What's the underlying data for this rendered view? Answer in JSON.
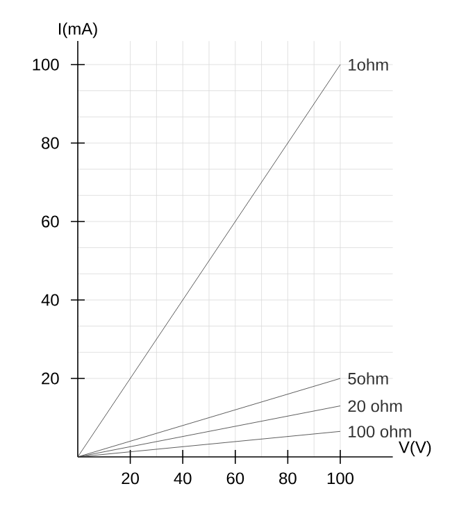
{
  "chart_data": {
    "type": "line",
    "xlabel": "V(V)",
    "ylabel": "I(mA)",
    "xlim": [
      0,
      120
    ],
    "ylim": [
      0,
      106
    ],
    "xticks": [
      20,
      40,
      60,
      80,
      100
    ],
    "yticks": [
      20,
      40,
      60,
      80,
      100
    ],
    "grid": true,
    "marker": "none",
    "line_style": "solid",
    "x": [
      0,
      100
    ],
    "series": [
      {
        "name": "1ohm",
        "color": "#333333",
        "values": [
          0,
          100
        ]
      },
      {
        "name": "5ohm",
        "color": "#333333",
        "values": [
          0,
          20
        ]
      },
      {
        "name": "20 ohm",
        "color": "#333333",
        "values": [
          0,
          13
        ]
      },
      {
        "name": "100 ohm",
        "color": "#333333",
        "values": [
          0,
          6.5
        ]
      }
    ]
  }
}
